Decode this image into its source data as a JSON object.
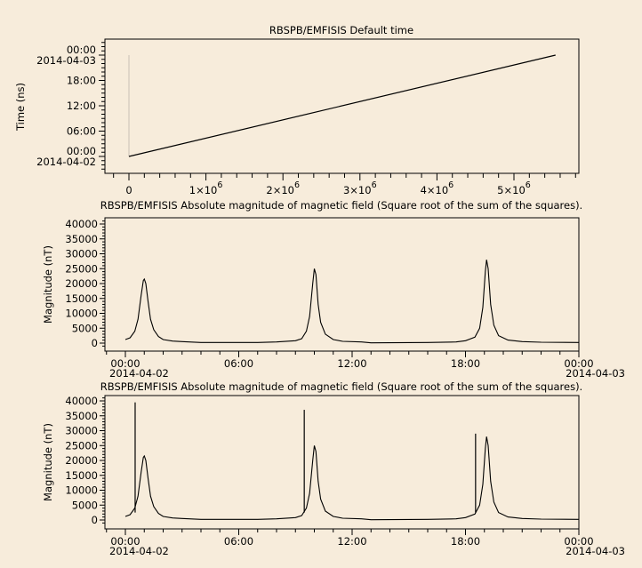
{
  "colors": {
    "background": "#f7ecdb",
    "line": "#000000",
    "faint_line": "#c8c0b4"
  },
  "chart_data": [
    {
      "type": "line",
      "title": "RBSPB/EMFISIS  Default time",
      "xlabel": "",
      "ylabel": "Time (ns)",
      "xlim": [
        -300000,
        5850000
      ],
      "x_ticks": [
        {
          "value": 0,
          "label": "0"
        },
        {
          "value": 1000000,
          "mant": "1×10",
          "exp": "6"
        },
        {
          "value": 2000000,
          "mant": "2×10",
          "exp": "6"
        },
        {
          "value": 3000000,
          "mant": "3×10",
          "exp": "6"
        },
        {
          "value": 4000000,
          "mant": "4×10",
          "exp": "6"
        },
        {
          "value": 5000000,
          "mant": "5×10",
          "exp": "6"
        }
      ],
      "y_ticks": [
        {
          "time": "00:00",
          "label": "00:00",
          "date": "2014-04-02"
        },
        {
          "time": "06:00",
          "label": "06:00"
        },
        {
          "time": "12:00",
          "label": "12:00"
        },
        {
          "time": "18:00",
          "label": "18:00"
        },
        {
          "time": "24:00",
          "label": "00:00",
          "date": "2014-04-03"
        }
      ],
      "series": [
        {
          "x": [
            0,
            5540000
          ],
          "y": [
            "2014-04-02 00:00",
            "2014-04-03 00:00"
          ]
        }
      ],
      "grid": false
    },
    {
      "type": "line",
      "title": "RBSPB/EMFISIS  Absolute magnitude of magnetic field (Square root of the sum of the squares).",
      "xlabel": "",
      "ylabel": "Magnitude (nT)",
      "ylim": [
        0,
        40000
      ],
      "y_ticks": [
        "0",
        "5000",
        "10000",
        "15000",
        "20000",
        "25000",
        "30000",
        "35000",
        "40000"
      ],
      "x_ticks": [
        {
          "time": "00:00",
          "label": "00:00",
          "date": "2014-04-02"
        },
        {
          "time": "06:00",
          "label": "06:00"
        },
        {
          "time": "12:00",
          "label": "12:00"
        },
        {
          "time": "18:00",
          "label": "18:00"
        },
        {
          "time": "24:00",
          "label": "00:00",
          "date": "2014-04-03"
        }
      ],
      "series": [
        {
          "t": [
            "00:00",
            "00:15",
            "00:30",
            "00:40",
            "00:50",
            "00:57",
            "01:00",
            "01:05",
            "01:12",
            "01:20",
            "01:30",
            "01:45",
            "02:00",
            "02:30",
            "03:00",
            "04:00",
            "07:00",
            "08:00",
            "09:00",
            "09:20",
            "09:35",
            "09:45",
            "09:55",
            "10:00",
            "10:05",
            "10:12",
            "10:20",
            "10:35",
            "11:00",
            "11:30",
            "12:30",
            "13:00",
            "16:00",
            "17:30",
            "18:00",
            "18:30",
            "18:45",
            "18:55",
            "19:03",
            "19:07",
            "19:12",
            "19:20",
            "19:30",
            "19:45",
            "20:15",
            "21:00",
            "22:00",
            "24:00"
          ],
          "y": [
            1200,
            1800,
            4000,
            8000,
            16000,
            21000,
            21500,
            20000,
            14000,
            8000,
            4500,
            2200,
            1200,
            700,
            500,
            200,
            200,
            400,
            800,
            1500,
            4000,
            9000,
            20000,
            25000,
            23000,
            13000,
            7000,
            3000,
            1200,
            600,
            400,
            100,
            200,
            400,
            800,
            2000,
            5000,
            12000,
            24000,
            28000,
            25000,
            13000,
            6000,
            2500,
            1000,
            500,
            300,
            200
          ]
        }
      ],
      "spikes": [],
      "grid": false
    },
    {
      "type": "line",
      "title": "RBSPB/EMFISIS  Absolute magnitude of magnetic field (Square root of the sum of the squares).",
      "xlabel": "",
      "ylabel": "Magnitude (nT)",
      "ylim": [
        0,
        40000
      ],
      "y_ticks": [
        "0",
        "5000",
        "10000",
        "15000",
        "20000",
        "25000",
        "30000",
        "35000",
        "40000"
      ],
      "x_ticks": [
        {
          "time": "00:00",
          "label": "00:00",
          "date": "2014-04-02"
        },
        {
          "time": "06:00",
          "label": "06:00"
        },
        {
          "time": "12:00",
          "label": "12:00"
        },
        {
          "time": "18:00",
          "label": "18:00"
        },
        {
          "time": "24:00",
          "label": "00:00",
          "date": "2014-04-03"
        }
      ],
      "series": [
        {
          "t": [
            "00:00",
            "00:15",
            "00:30",
            "00:40",
            "00:50",
            "00:57",
            "01:00",
            "01:05",
            "01:12",
            "01:20",
            "01:30",
            "01:45",
            "02:00",
            "02:30",
            "03:00",
            "04:00",
            "07:00",
            "08:00",
            "09:00",
            "09:20",
            "09:35",
            "09:45",
            "09:55",
            "10:00",
            "10:05",
            "10:12",
            "10:20",
            "10:35",
            "11:00",
            "11:30",
            "12:30",
            "13:00",
            "16:00",
            "17:30",
            "18:00",
            "18:30",
            "18:45",
            "18:55",
            "19:03",
            "19:07",
            "19:12",
            "19:20",
            "19:30",
            "19:45",
            "20:15",
            "21:00",
            "22:00",
            "24:00"
          ],
          "y": [
            1200,
            1800,
            4000,
            8000,
            16000,
            21000,
            21500,
            20000,
            14000,
            8000,
            4500,
            2200,
            1200,
            700,
            500,
            200,
            200,
            400,
            800,
            1500,
            4000,
            9000,
            20000,
            25000,
            23000,
            13000,
            7000,
            3000,
            1200,
            600,
            400,
            100,
            200,
            400,
            800,
            2000,
            5000,
            12000,
            24000,
            28000,
            25000,
            13000,
            6000,
            2500,
            1000,
            500,
            300,
            200
          ]
        }
      ],
      "spikes": [
        {
          "t": "00:31",
          "y": 39500
        },
        {
          "t": "09:28",
          "y": 37000
        },
        {
          "t": "18:32",
          "y": 29000
        }
      ],
      "grid": false
    }
  ]
}
